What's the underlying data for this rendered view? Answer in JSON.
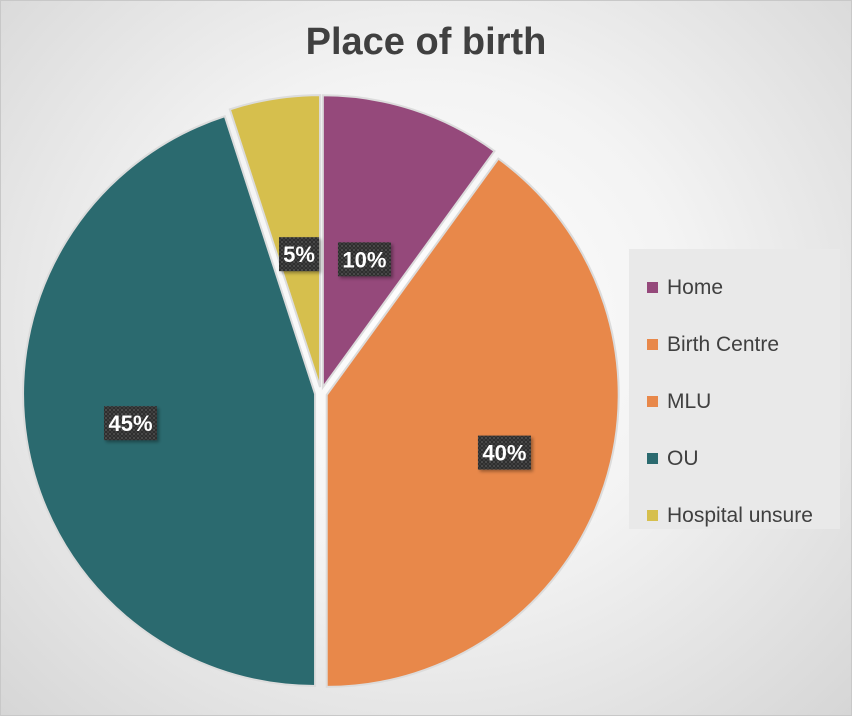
{
  "chart_data": {
    "type": "pie",
    "title": "Place of birth",
    "categories": [
      "Home",
      "Birth Centre",
      "MLU",
      "OU",
      "Hospital unsure"
    ],
    "values": [
      10,
      0,
      40,
      45,
      5
    ],
    "data_labels": [
      "10%",
      "",
      "40%",
      "45%",
      "5%"
    ],
    "colors": [
      "#95497b",
      "#e8884a",
      "#e8884a",
      "#2b6a6f",
      "#d6bf4d"
    ],
    "legend_position": "right",
    "exploded": true
  }
}
